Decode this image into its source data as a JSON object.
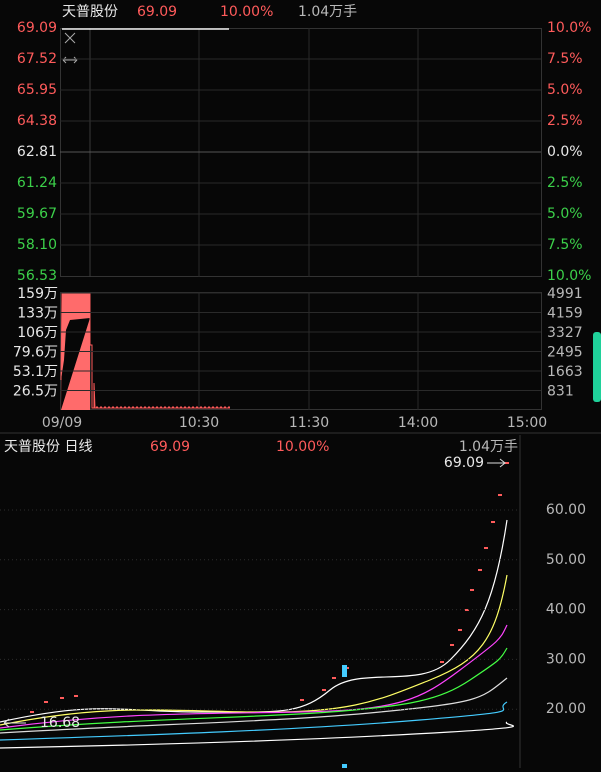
{
  "intraday": {
    "header": {
      "name": "天普股份",
      "price": "69.09",
      "change": "10.00%",
      "volume": "1.04万手"
    },
    "price_labels": [
      "69.09",
      "67.52",
      "65.95",
      "64.38",
      "62.81",
      "61.24",
      "59.67",
      "58.10",
      "56.53"
    ],
    "percent_labels": [
      "10.0%",
      "7.5%",
      "5.0%",
      "2.5%",
      "0.0%",
      "2.5%",
      "5.0%",
      "7.5%",
      "10.0%"
    ],
    "volume_labels_left": [
      "159万",
      "133万",
      "106万",
      "79.6万",
      "53.1万",
      "26.5万"
    ],
    "volume_labels_right": [
      "4991",
      "4159",
      "3327",
      "2495",
      "1663",
      "831"
    ],
    "time_labels": [
      "09/09",
      "10:30",
      "11:30",
      "14:00",
      "15:00"
    ]
  },
  "daily": {
    "header": {
      "name": "天普股份 日线",
      "price": "69.09",
      "change": "10.00%",
      "volume": "1.04万手"
    },
    "price_labels": [
      "60.00",
      "50.00",
      "40.00",
      "30.00",
      "20.00"
    ],
    "high_marker": "69.09",
    "low_marker": "16.68"
  }
}
